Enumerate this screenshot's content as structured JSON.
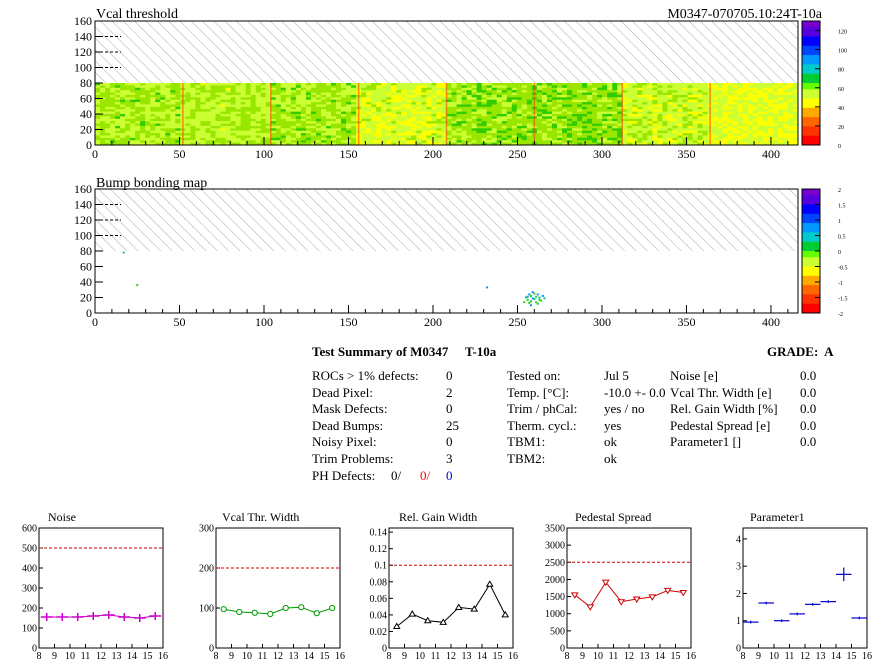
{
  "header": {
    "top_title": "Vcal threshold",
    "module_id": "M0347-070705.10:24T-10a",
    "bump_title": "Bump bonding map"
  },
  "chart_data": [
    {
      "type": "heatmap",
      "title": "Vcal threshold",
      "x_ticks": [
        "0",
        "50",
        "100",
        "150",
        "200",
        "250",
        "300",
        "350",
        "400"
      ],
      "y_ticks": [
        "0",
        "20",
        "40",
        "60",
        "80",
        "100",
        "120",
        "140",
        "160"
      ],
      "xlim": [
        0,
        416
      ],
      "ylim": [
        0,
        160
      ],
      "filled_rows": 80,
      "hatched_region": [
        80,
        160
      ],
      "colorbar": {
        "min": 0,
        "max": 130,
        "ticks": [
          "0",
          "20",
          "40",
          "60",
          "80",
          "100",
          "120"
        ]
      },
      "column_levels": [
        75,
        78,
        74,
        85,
        72,
        70,
        82,
        88,
        90
      ],
      "roc_boundaries": [
        52,
        104,
        156,
        208,
        260,
        312,
        364
      ],
      "colors": [
        "#6600cc",
        "#0000ff",
        "#0099ff",
        "#00cccc",
        "#00cc66",
        "#33cc00",
        "#99e600",
        "#ccff33",
        "#ffff00",
        "#ffcc00",
        "#ff6600",
        "#ff0000"
      ]
    },
    {
      "type": "heatmap",
      "title": "Bump bonding map",
      "x_ticks": [
        "0",
        "50",
        "100",
        "150",
        "200",
        "250",
        "300",
        "350",
        "400"
      ],
      "y_ticks": [
        "0",
        "20",
        "40",
        "60",
        "80",
        "100",
        "120",
        "140",
        "160"
      ],
      "xlim": [
        0,
        416
      ],
      "ylim": [
        0,
        160
      ],
      "hatched_region": [
        80,
        160
      ],
      "colorbar": {
        "min": -2,
        "max": 2,
        "ticks": [
          "2",
          "1.5",
          "1",
          "0.5",
          "0",
          "-0.5",
          "-1",
          "-1.5",
          "-2"
        ]
      },
      "defects": [
        [
          17,
          78
        ],
        [
          25,
          36
        ],
        [
          232,
          33
        ],
        [
          255,
          20
        ],
        [
          256,
          17
        ],
        [
          257,
          24
        ],
        [
          258,
          15
        ],
        [
          258,
          22
        ],
        [
          259,
          27
        ],
        [
          260,
          18
        ],
        [
          261,
          14
        ],
        [
          262,
          24
        ],
        [
          263,
          20
        ],
        [
          264,
          16
        ],
        [
          265,
          22
        ],
        [
          262,
          12
        ],
        [
          257,
          13
        ],
        [
          259,
          19
        ],
        [
          261,
          21
        ],
        [
          260,
          25
        ],
        [
          256,
          21
        ],
        [
          263,
          17
        ],
        [
          254,
          14
        ],
        [
          258,
          10
        ],
        [
          266,
          19
        ]
      ]
    },
    {
      "type": "line",
      "title": "Noise",
      "x_ticks": [
        "8",
        "9",
        "10",
        "11",
        "12",
        "13",
        "14",
        "15",
        "16"
      ],
      "y_ticks": [
        "0",
        "100",
        "200",
        "300",
        "400",
        "500",
        "600"
      ],
      "xlim": [
        8,
        16
      ],
      "ylim": [
        0,
        600
      ],
      "cut": 500,
      "x": [
        8.5,
        9.5,
        10.5,
        11.5,
        12.5,
        13.5,
        14.5,
        15.5
      ],
      "values": [
        155,
        155,
        155,
        160,
        165,
        155,
        150,
        160
      ],
      "color": "#cc00cc",
      "marker": "cross"
    },
    {
      "type": "line",
      "title": "Vcal Thr. Width",
      "x_ticks": [
        "8",
        "9",
        "10",
        "11",
        "12",
        "13",
        "14",
        "15",
        "16"
      ],
      "y_ticks": [
        "0",
        "100",
        "200",
        "300"
      ],
      "xlim": [
        8,
        16
      ],
      "ylim": [
        0,
        300
      ],
      "cut": 200,
      "x": [
        8.5,
        9.5,
        10.5,
        11.5,
        12.5,
        13.5,
        14.5,
        15.5
      ],
      "values": [
        97,
        90,
        88,
        85,
        100,
        102,
        87,
        100
      ],
      "color": "#009900",
      "marker": "circle"
    },
    {
      "type": "line",
      "title": "Rel. Gain Width",
      "x_ticks": [
        "8",
        "9",
        "10",
        "11",
        "12",
        "13",
        "14",
        "15",
        "16"
      ],
      "y_ticks": [
        "0",
        "0.02",
        "0.04",
        "0.06",
        "0.08",
        "0.1",
        "0.12",
        "0.14"
      ],
      "xlim": [
        8,
        16
      ],
      "ylim": [
        0,
        0.145
      ],
      "cut": 0.1,
      "x": [
        8.5,
        9.5,
        10.5,
        11.5,
        12.5,
        13.5,
        14.5,
        15.5
      ],
      "values": [
        0.026,
        0.041,
        0.033,
        0.031,
        0.049,
        0.047,
        0.077,
        0.04
      ],
      "color": "#000000",
      "marker": "triangle"
    },
    {
      "type": "line",
      "title": "Pedestal Spread",
      "x_ticks": [
        "8",
        "9",
        "10",
        "11",
        "12",
        "13",
        "14",
        "15",
        "16"
      ],
      "y_ticks": [
        "0",
        "500",
        "1000",
        "1500",
        "2000",
        "2500",
        "3000",
        "3500"
      ],
      "xlim": [
        8,
        16
      ],
      "ylim": [
        0,
        3500
      ],
      "cut": 2500,
      "x": [
        8.5,
        9.5,
        10.5,
        11.5,
        12.5,
        13.5,
        14.5,
        15.5
      ],
      "values": [
        1550,
        1200,
        1920,
        1350,
        1430,
        1490,
        1680,
        1620
      ],
      "color": "#cc0000",
      "marker": "triangle-down"
    },
    {
      "type": "scatter",
      "title": "Parameter1",
      "x_ticks": [
        "8",
        "9",
        "10",
        "11",
        "12",
        "13",
        "14",
        "15",
        "16"
      ],
      "y_ticks": [
        "0",
        "1",
        "2",
        "3",
        "4"
      ],
      "xlim": [
        8,
        16
      ],
      "ylim": [
        0,
        4.4
      ],
      "x": [
        8.5,
        9.5,
        10.5,
        11.5,
        12.5,
        13.5,
        14.5,
        15.5
      ],
      "values": [
        0.95,
        1.65,
        1.0,
        1.25,
        1.6,
        1.7,
        2.7,
        1.1
      ],
      "errors": [
        0.05,
        0.05,
        0.05,
        0.05,
        0.05,
        0.05,
        0.25,
        0.05
      ],
      "color": "#0000cc",
      "marker": "errorbar"
    }
  ],
  "summary": {
    "title": "Test Summary of M0347",
    "temp_label": "T-10a",
    "grade_label": "GRADE:",
    "grade": "A",
    "left": [
      {
        "label": "ROCs > 1% defects:",
        "value": "0"
      },
      {
        "label": "Dead Pixel:",
        "value": "2"
      },
      {
        "label": "Mask Defects:",
        "value": "0"
      },
      {
        "label": "Dead Bumps:",
        "value": "25"
      },
      {
        "label": "Noisy Pixel:",
        "value": "0"
      },
      {
        "label": "Trim Problems:",
        "value": "3"
      }
    ],
    "ph_label": "PH Defects:",
    "ph_values": [
      "0/",
      "0/",
      "0"
    ],
    "ph_colors": [
      "#000000",
      "#ff0000",
      "#0000cc"
    ],
    "middle": [
      {
        "label": "Tested on:",
        "value": "Jul 5"
      },
      {
        "label": "Temp. [°C]:",
        "value": "-10.0 +- 0.0"
      },
      {
        "label": "Trim / phCal:",
        "value": "yes / no"
      },
      {
        "label": "Therm. cycl.:",
        "value": "yes"
      },
      {
        "label": "TBM1:",
        "value": "ok"
      },
      {
        "label": "TBM2:",
        "value": "ok"
      }
    ],
    "right": [
      {
        "label": "Noise [e]",
        "value": "0.0"
      },
      {
        "label": "Vcal Thr. Width [e]",
        "value": "0.0"
      },
      {
        "label": "Rel. Gain Width [%]",
        "value": "0.0"
      },
      {
        "label": "Pedestal Spread [e]",
        "value": "0.0"
      },
      {
        "label": "Parameter1 []",
        "value": "0.0"
      }
    ]
  }
}
